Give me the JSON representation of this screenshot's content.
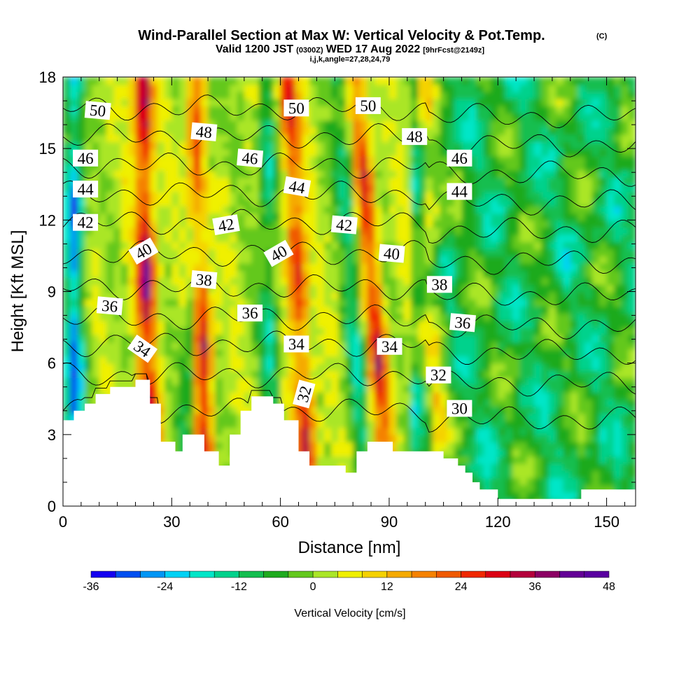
{
  "chart_data": {
    "type": "heatmap",
    "title": "Wind-Parallel Section at Max W: Vertical Velocity & Pot.Temp.",
    "title_suffix": "(C)",
    "subtitle_valid": "Valid 1200 JST",
    "subtitle_z": "(0300Z)",
    "subtitle_date": "WED 17 Aug 2022",
    "subtitle_fcst": "[9hrFcst@2149z]",
    "subtitle_ijk": "i,j,k,angle=27,28,24,79",
    "xlabel": "Distance [nm]",
    "ylabel": "Height [Kft MSL]",
    "xlim": [
      0,
      158
    ],
    "ylim": [
      0,
      18
    ],
    "x_ticks": [
      0,
      30,
      60,
      90,
      120,
      150
    ],
    "y_ticks": [
      0,
      3,
      6,
      9,
      12,
      15,
      18
    ],
    "grid": false,
    "colorbar": {
      "label": "Vertical Velocity [cm/s]",
      "min": -36,
      "max": 48,
      "step": 4,
      "tick_labels": [
        -36,
        -24,
        -12,
        0,
        12,
        24,
        36,
        48
      ],
      "colors": [
        "#1400f0",
        "#0050f0",
        "#0096f5",
        "#00d2f5",
        "#00e6c8",
        "#00d28c",
        "#14be50",
        "#1eaa1e",
        "#64c81e",
        "#aae628",
        "#f0f000",
        "#f5d200",
        "#f5aa00",
        "#f58200",
        "#f05a00",
        "#f02800",
        "#dc0014",
        "#b4003c",
        "#8c0064",
        "#640096",
        "#5a00a0"
      ]
    },
    "updraft_bands": [
      {
        "x_base": 24,
        "x_top": 22,
        "peak_w": 38
      },
      {
        "x_base": 39,
        "x_top": 37,
        "peak_w": 40
      },
      {
        "x_base": 68,
        "x_top": 62,
        "peak_w": 30
      },
      {
        "x_base": 90,
        "x_top": 81,
        "peak_w": 30
      },
      {
        "x_base": 104,
        "x_top": 100,
        "peak_w": 16
      }
    ],
    "downdraft_bands": [
      {
        "x_base": 3,
        "x_top": 3,
        "peak_w": -34
      },
      {
        "x_base": 33,
        "x_top": 40,
        "peak_w": -20
      },
      {
        "x_base": 58,
        "x_top": 56,
        "peak_w": -18
      },
      {
        "x_base": 84,
        "x_top": 76,
        "peak_w": -18
      }
    ],
    "terrain_profile": {
      "x": [
        0,
        3,
        3,
        6,
        6,
        9,
        9,
        13,
        13,
        20,
        20,
        24,
        24,
        27,
        27,
        31,
        31,
        33,
        33,
        39,
        39,
        43,
        43,
        46,
        46,
        49,
        49,
        52,
        52,
        58,
        58,
        61,
        61,
        65,
        65,
        68,
        68,
        78,
        78,
        81,
        81,
        84,
        84,
        91,
        91,
        96,
        96,
        105,
        105,
        109,
        109,
        111,
        111,
        113,
        113,
        115,
        115,
        120,
        120,
        128,
        128,
        143,
        143,
        158
      ],
      "h_kft": [
        3.6,
        3.6,
        4.0,
        4.0,
        4.3,
        4.3,
        4.7,
        4.7,
        5.0,
        5.0,
        5.3,
        5.3,
        4.3,
        4.3,
        2.7,
        2.7,
        2.3,
        2.3,
        3.0,
        3.0,
        2.3,
        2.3,
        1.7,
        1.7,
        3.0,
        3.0,
        4.0,
        4.0,
        4.6,
        4.6,
        4.3,
        4.3,
        3.6,
        3.6,
        2.3,
        2.3,
        1.7,
        1.7,
        1.4,
        1.4,
        2.3,
        2.3,
        2.7,
        2.7,
        2.3,
        2.3,
        2.3,
        2.3,
        2.0,
        2.0,
        1.7,
        1.7,
        1.4,
        1.4,
        1.0,
        1.0,
        0.7,
        0.7,
        0.3,
        0.3,
        0.3,
        0.3,
        0.7,
        0.7
      ]
    },
    "theta_isentropes_C": [
      {
        "value": 30,
        "height_kft": 4.0
      },
      {
        "value": 32,
        "height_kft": 5.5
      },
      {
        "value": 34,
        "height_kft": 6.8
      },
      {
        "value": 36,
        "height_kft": 7.9
      },
      {
        "value": 38,
        "height_kft": 9.2
      },
      {
        "value": 40,
        "height_kft": 10.6
      },
      {
        "value": 42,
        "height_kft": 11.9
      },
      {
        "value": 44,
        "height_kft": 13.1
      },
      {
        "value": 46,
        "height_kft": 14.3
      },
      {
        "value": 48,
        "height_kft": 15.5
      },
      {
        "value": 50,
        "height_kft": 16.7
      }
    ],
    "contour_labels": [
      {
        "text": "50",
        "x": 9.6,
        "y": 16.6,
        "angle": 5
      },
      {
        "text": "46",
        "x": 6.2,
        "y": 14.6,
        "angle": 0
      },
      {
        "text": "44",
        "x": 6.2,
        "y": 13.3,
        "angle": 0
      },
      {
        "text": "42",
        "x": 6.2,
        "y": 11.9,
        "angle": 0
      },
      {
        "text": "40",
        "x": 22.2,
        "y": 10.7,
        "angle": -30
      },
      {
        "text": "36",
        "x": 12.9,
        "y": 8.4,
        "angle": 5
      },
      {
        "text": "34",
        "x": 21.9,
        "y": 6.6,
        "angle": 35
      },
      {
        "text": "48",
        "x": 38.9,
        "y": 15.7,
        "angle": 5
      },
      {
        "text": "46",
        "x": 51.6,
        "y": 14.6,
        "angle": 5
      },
      {
        "text": "42",
        "x": 45.0,
        "y": 11.8,
        "angle": -10
      },
      {
        "text": "38",
        "x": 38.9,
        "y": 9.5,
        "angle": 5
      },
      {
        "text": "36",
        "x": 51.6,
        "y": 8.1,
        "angle": 0
      },
      {
        "text": "50",
        "x": 64.4,
        "y": 16.7,
        "angle": 0
      },
      {
        "text": "44",
        "x": 64.6,
        "y": 13.4,
        "angle": 10
      },
      {
        "text": "40",
        "x": 59.5,
        "y": 10.6,
        "angle": -30
      },
      {
        "text": "34",
        "x": 64.4,
        "y": 6.8,
        "angle": 0
      },
      {
        "text": "32",
        "x": 66.5,
        "y": 4.7,
        "angle": -75
      },
      {
        "text": "50",
        "x": 84.2,
        "y": 16.8,
        "angle": 0
      },
      {
        "text": "42",
        "x": 77.6,
        "y": 11.8,
        "angle": 5
      },
      {
        "text": "48",
        "x": 97.0,
        "y": 15.5,
        "angle": 0
      },
      {
        "text": "40",
        "x": 90.7,
        "y": 10.6,
        "angle": 5
      },
      {
        "text": "34",
        "x": 90.1,
        "y": 6.7,
        "angle": 0
      },
      {
        "text": "46",
        "x": 109.4,
        "y": 14.6,
        "angle": 0
      },
      {
        "text": "44",
        "x": 109.4,
        "y": 13.2,
        "angle": 0
      },
      {
        "text": "38",
        "x": 103.9,
        "y": 9.3,
        "angle": 0
      },
      {
        "text": "36",
        "x": 110.3,
        "y": 7.7,
        "angle": 5
      },
      {
        "text": "32",
        "x": 103.6,
        "y": 5.5,
        "angle": 0
      },
      {
        "text": "30",
        "x": 109.4,
        "y": 4.1,
        "angle": 0
      }
    ]
  }
}
